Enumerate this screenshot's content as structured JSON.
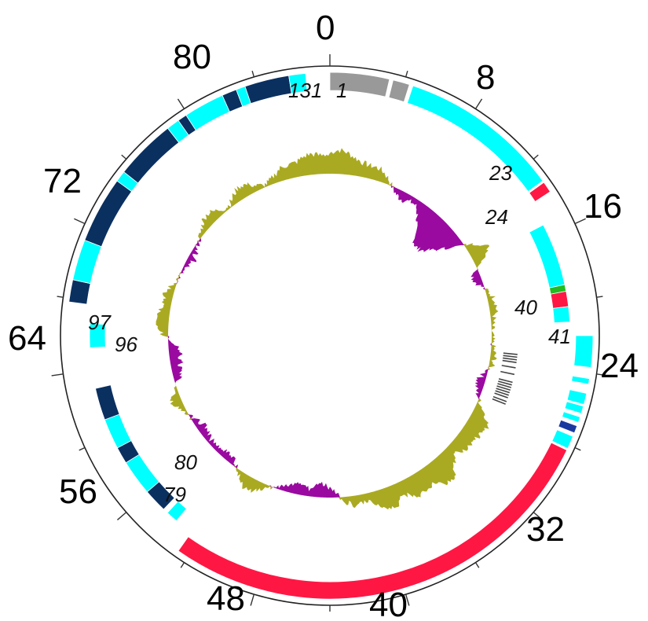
{
  "figure": {
    "type": "circular-genome-map",
    "total_length": 88,
    "position_labels": [
      "0",
      "8",
      "16",
      "24",
      "32",
      "40",
      "48",
      "56",
      "64",
      "72",
      "80"
    ],
    "gene_labels": [
      "1",
      "23",
      "24",
      "40",
      "41",
      "79",
      "80",
      "96",
      "97",
      "131"
    ],
    "colors": {
      "grey": "#999999",
      "cyan": "#00ffff",
      "navy": "#0a3060",
      "red": "#ff1744",
      "green": "#22bb22",
      "blue": "#1a3aa0",
      "olive": "#aaaa22",
      "purple": "#9a0aa0",
      "ticks": "#444444"
    },
    "outer_track": [
      {
        "start": 0.0,
        "end": 3.2,
        "color": "grey"
      },
      {
        "start": 3.4,
        "end": 4.3,
        "color": "grey"
      },
      {
        "start": 4.5,
        "end": 13.2,
        "color": "cyan"
      },
      {
        "start": 13.3,
        "end": 13.9,
        "color": "red"
      },
      {
        "start": 67.8,
        "end": 69.0,
        "color": "navy"
      },
      {
        "start": 69.0,
        "end": 71.2,
        "color": "cyan"
      },
      {
        "start": 71.2,
        "end": 74.8,
        "color": "navy"
      },
      {
        "start": 74.8,
        "end": 75.4,
        "color": "cyan"
      },
      {
        "start": 75.4,
        "end": 78.7,
        "color": "navy"
      },
      {
        "start": 78.7,
        "end": 79.4,
        "color": "cyan"
      },
      {
        "start": 79.4,
        "end": 79.9,
        "color": "navy"
      },
      {
        "start": 79.9,
        "end": 82.1,
        "color": "cyan"
      },
      {
        "start": 82.1,
        "end": 82.9,
        "color": "navy"
      },
      {
        "start": 82.9,
        "end": 83.4,
        "color": "cyan"
      },
      {
        "start": 83.4,
        "end": 85.8,
        "color": "navy"
      },
      {
        "start": 85.8,
        "end": 86.7,
        "color": "cyan"
      }
    ],
    "middle_track": [
      {
        "start": 15.3,
        "end": 19.0,
        "color": "cyan"
      },
      {
        "start": 19.0,
        "end": 19.4,
        "color": "green"
      },
      {
        "start": 19.4,
        "end": 20.3,
        "color": "red"
      },
      {
        "start": 20.3,
        "end": 21.2,
        "color": "cyan"
      },
      {
        "start": 53.7,
        "end": 54.4,
        "color": "cyan"
      },
      {
        "start": 54.7,
        "end": 56.1,
        "color": "navy"
      },
      {
        "start": 56.1,
        "end": 58.2,
        "color": "cyan"
      },
      {
        "start": 58.2,
        "end": 59.2,
        "color": "navy"
      },
      {
        "start": 59.2,
        "end": 61.0,
        "color": "cyan"
      },
      {
        "start": 61.0,
        "end": 62.9,
        "color": "navy"
      },
      {
        "start": 65.3,
        "end": 66.7,
        "color": "cyan"
      }
    ],
    "third_track": [
      {
        "start": 22.0,
        "end": 23.7,
        "color": "cyan"
      },
      {
        "start": 24.3,
        "end": 24.6,
        "color": "cyan"
      },
      {
        "start": 25.1,
        "end": 25.7,
        "color": "cyan"
      },
      {
        "start": 25.8,
        "end": 26.2,
        "color": "cyan"
      },
      {
        "start": 26.4,
        "end": 26.7,
        "color": "cyan"
      },
      {
        "start": 26.9,
        "end": 27.3,
        "color": "blue"
      },
      {
        "start": 27.5,
        "end": 28.2,
        "color": "cyan"
      },
      {
        "start": 28.3,
        "end": 52.6,
        "color": "red"
      }
    ],
    "inner_ticks": [
      23.4,
      23.6,
      23.8,
      24.0,
      24.4,
      24.9,
      25.5,
      25.7,
      25.9,
      26.1,
      26.3,
      26.5,
      26.7,
      27.0,
      27.2
    ]
  }
}
